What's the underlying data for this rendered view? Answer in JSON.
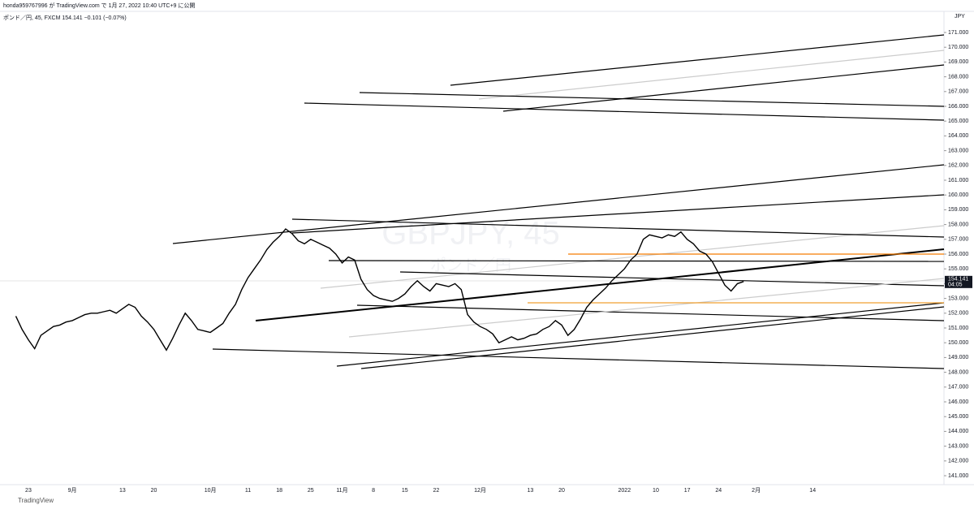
{
  "header": {
    "publisher": "honda959767996 が TradingView.com で 1月 27, 2022 10:40 UTC+9 に公開",
    "symbol_info": "ポンド／円, 45, FXCM  154.141  −0.101 (−0.07%)",
    "currency": "JPY",
    "watermark": "GBPJPY, 45",
    "watermark_sub": "ポンド／円"
  },
  "footer": {
    "brand": "TradingView"
  },
  "last_price": {
    "value": 154.141,
    "label": "154.141",
    "countdown": "04:05"
  },
  "chart_data": {
    "type": "line",
    "color": "#000000",
    "categories": [
      null,
      null,
      "23",
      null,
      null,
      null,
      null,
      null,
      null,
      "9月",
      null,
      null,
      null,
      null,
      null,
      null,
      null,
      "13",
      null,
      null,
      null,
      null,
      "20",
      null,
      null,
      null,
      null,
      null,
      null,
      null,
      null,
      "10月",
      null,
      null,
      null,
      null,
      null,
      "11",
      null,
      null,
      null,
      null,
      "18",
      null,
      null,
      null,
      null,
      "25",
      null,
      null,
      null,
      null,
      "11月",
      null,
      null,
      null,
      null,
      "8",
      null,
      null,
      null,
      null,
      "15",
      null,
      null,
      null,
      null,
      "22",
      null,
      null,
      null,
      null,
      null,
      null,
      "12月",
      null,
      null,
      null,
      null,
      null,
      null,
      null,
      "13",
      null,
      null,
      null,
      null,
      "20",
      null,
      null,
      null,
      null,
      null,
      null,
      null,
      null,
      null,
      "2022",
      null,
      null,
      null,
      null,
      "10",
      null,
      null,
      null,
      null,
      "17",
      null,
      null,
      null,
      null,
      "24",
      null,
      null,
      null,
      null,
      null,
      "2月",
      null,
      null,
      null,
      null,
      null,
      null,
      null,
      null,
      "14"
    ],
    "values": [
      151.8,
      150.9,
      150.2,
      149.6,
      150.5,
      150.8,
      151.1,
      151.2,
      151.4,
      151.5,
      151.7,
      151.9,
      152.0,
      152.0,
      152.1,
      152.2,
      152.0,
      152.3,
      152.6,
      152.4,
      151.8,
      151.4,
      150.9,
      150.2,
      149.5,
      150.3,
      151.2,
      152.0,
      151.5,
      150.9,
      150.8,
      150.7,
      151.0,
      151.3,
      152.0,
      152.6,
      153.6,
      154.4,
      155.0,
      155.6,
      156.3,
      156.8,
      157.2,
      157.7,
      157.4,
      156.9,
      156.7,
      157.0,
      156.8,
      156.6,
      156.4,
      156.0,
      155.4,
      155.8,
      155.6,
      154.3,
      153.6,
      153.2,
      153.0,
      152.9,
      152.8,
      153.0,
      153.3,
      153.8,
      154.2,
      153.8,
      153.5,
      154.0,
      153.9,
      153.8,
      154.0,
      153.6,
      151.9,
      151.4,
      151.1,
      150.9,
      150.6,
      150.0,
      150.2,
      150.4,
      150.2,
      150.3,
      150.5,
      150.6,
      150.9,
      151.1,
      151.5,
      151.2,
      150.5,
      150.9,
      151.6,
      152.4,
      152.9,
      153.3,
      153.7,
      154.2,
      154.6,
      155.0,
      155.6,
      156.0,
      157.0,
      157.3,
      157.2,
      157.1,
      157.3,
      157.2,
      157.5,
      157.0,
      156.7,
      156.2,
      156.0,
      155.5,
      154.7,
      153.9,
      153.5,
      154.0,
      154.141,
      null,
      null,
      null,
      null,
      null,
      null,
      null,
      null,
      null,
      null,
      null
    ],
    "ylim": [
      141,
      171
    ],
    "yticks": [
      {
        "value": 141,
        "label": "141.000"
      },
      {
        "value": 142,
        "label": "142.000"
      },
      {
        "value": 143,
        "label": "143.000"
      },
      {
        "value": 144,
        "label": "144.000"
      },
      {
        "value": 145,
        "label": "145.000"
      },
      {
        "value": 146,
        "label": "146.000"
      },
      {
        "value": 147,
        "label": "147.000"
      },
      {
        "value": 148,
        "label": "148.000"
      },
      {
        "value": 149,
        "label": "149.000"
      },
      {
        "value": 150,
        "label": "150.000"
      },
      {
        "value": 151,
        "label": "151.000"
      },
      {
        "value": 152,
        "label": "152.000"
      },
      {
        "value": 153,
        "label": "153.000"
      },
      {
        "value": 154,
        "label": "154.000"
      },
      {
        "value": 155,
        "label": "155.000"
      },
      {
        "value": 156,
        "label": "156.000"
      },
      {
        "value": 157,
        "label": "157.000"
      },
      {
        "value": 158,
        "label": "158.000"
      },
      {
        "value": 159,
        "label": "159.000"
      },
      {
        "value": 160,
        "label": "160.000"
      },
      {
        "value": 161,
        "label": "161.000"
      },
      {
        "value": 162,
        "label": "162.000"
      },
      {
        "value": 163,
        "label": "163.000"
      },
      {
        "value": 164,
        "label": "164.000"
      },
      {
        "value": 165,
        "label": "165.000"
      },
      {
        "value": 166,
        "label": "166.000"
      },
      {
        "value": 167,
        "label": "167.000"
      },
      {
        "value": 168,
        "label": "168.000"
      },
      {
        "value": 169,
        "label": "169.000"
      },
      {
        "value": 170,
        "label": "170.000"
      },
      {
        "value": 171,
        "label": "171.000"
      }
    ]
  }
}
